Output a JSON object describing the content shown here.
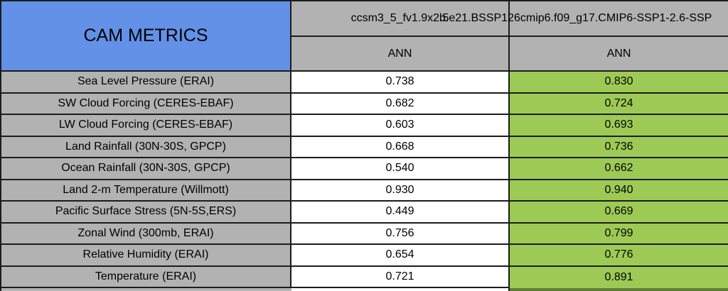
{
  "title": "CAM METRICS",
  "columns": [
    {
      "model": "ccsm3_5_fv1.9x2.5",
      "season": "ANN"
    },
    {
      "model": "b.e21.BSSP126cmip6.f09_g17.CMIP6-SSP1-2.6-SSP",
      "season": "ANN"
    }
  ],
  "rows": [
    {
      "label": "Sea Level Pressure (ERAI)",
      "values": [
        "0.738",
        "0.830"
      ]
    },
    {
      "label": "SW Cloud Forcing (CERES-EBAF)",
      "values": [
        "0.682",
        "0.724"
      ]
    },
    {
      "label": "LW Cloud Forcing (CERES-EBAF)",
      "values": [
        "0.603",
        "0.693"
      ]
    },
    {
      "label": "Land Rainfall (30N-30S, GPCP)",
      "values": [
        "0.668",
        "0.736"
      ]
    },
    {
      "label": "Ocean Rainfall (30N-30S, GPCP)",
      "values": [
        "0.540",
        "0.662"
      ]
    },
    {
      "label": "Land 2-m Temperature (Willmott)",
      "values": [
        "0.930",
        "0.940"
      ]
    },
    {
      "label": "Pacific Surface Stress (5N-5S,ERS)",
      "values": [
        "0.449",
        "0.669"
      ]
    },
    {
      "label": "Zonal Wind (300mb, ERAI)",
      "values": [
        "0.756",
        "0.799"
      ]
    },
    {
      "label": "Relative Humidity (ERAI)",
      "values": [
        "0.654",
        "0.776"
      ]
    },
    {
      "label": "Temperature (ERAI)",
      "values": [
        "0.721",
        "0.891"
      ]
    }
  ],
  "colors": {
    "title_bg": "#6391e8",
    "header_bg": "#b2b2b2",
    "label_bg": "#b2b2b2",
    "col1_bg": "#ffffff",
    "col2_bg": "#9dca55",
    "col2_sliver": "#5f7c34",
    "border": "#1c1c1c"
  },
  "chart_data": {
    "type": "table",
    "title": "CAM METRICS",
    "categories": [
      "Sea Level Pressure (ERAI)",
      "SW Cloud Forcing (CERES-EBAF)",
      "LW Cloud Forcing (CERES-EBAF)",
      "Land Rainfall (30N-30S, GPCP)",
      "Ocean Rainfall (30N-30S, GPCP)",
      "Land 2-m Temperature (Willmott)",
      "Pacific Surface Stress (5N-5S,ERS)",
      "Zonal Wind (300mb, ERAI)",
      "Relative Humidity (ERAI)",
      "Temperature (ERAI)"
    ],
    "series": [
      {
        "name": "ccsm3_5_fv1.9x2.5",
        "season": "ANN",
        "values": [
          0.738,
          0.682,
          0.603,
          0.668,
          0.54,
          0.93,
          0.449,
          0.756,
          0.654,
          0.721
        ]
      },
      {
        "name": "b.e21.BSSP126cmip6.f09_g17.CMIP6-SSP1-2.6-SSP",
        "season": "ANN",
        "values": [
          0.83,
          0.724,
          0.693,
          0.736,
          0.662,
          0.94,
          0.669,
          0.799,
          0.776,
          0.891
        ]
      }
    ],
    "notes": "Second model name is clipped at the right edge of the screenshot; second value column highlighted green (higher score)."
  }
}
